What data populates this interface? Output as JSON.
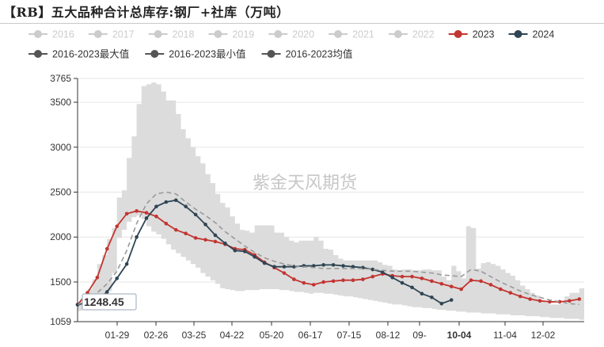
{
  "title": "【RB】五大品种合计总库存:钢厂+社库（万吨）",
  "watermark": "紫金天风期货",
  "tooltip_value": "1248.45",
  "legend": [
    {
      "label": "2016",
      "active": false
    },
    {
      "label": "2017",
      "active": false
    },
    {
      "label": "2018",
      "active": false
    },
    {
      "label": "2019",
      "active": false
    },
    {
      "label": "2020",
      "active": false
    },
    {
      "label": "2021",
      "active": false
    },
    {
      "label": "2022",
      "active": false
    },
    {
      "label": "2023",
      "active": true,
      "color": "#c23531"
    },
    {
      "label": "2024",
      "active": true,
      "color": "#2f4554"
    },
    {
      "label": "2016-2023最大值",
      "active": true,
      "color": "#555555"
    },
    {
      "label": "2016-2023最小值",
      "active": true,
      "color": "#555555"
    },
    {
      "label": "2016-2023均值",
      "active": true,
      "color": "#555555"
    }
  ],
  "colors": {
    "s2023": "#c23531",
    "s2024": "#2f4554",
    "mean": "#9a9a9a",
    "band": "#dcdcdc",
    "inactive_legend": "#cccccc",
    "grid": "#e6e6e6"
  },
  "chart_data": {
    "type": "line",
    "x_ticks": [
      "01-29",
      "02-26",
      "03-25",
      "04-22",
      "05-20",
      "06-17",
      "07-15",
      "08-12",
      "09-",
      "10-04",
      "11-04",
      "12-02"
    ],
    "highlighted_x_tick": "10-04",
    "y_ticks": [
      1059,
      1500,
      2000,
      2500,
      3000,
      3500,
      3765
    ],
    "ylim": [
      1059,
      3765
    ],
    "grid": true,
    "legend_position": "top",
    "band_x": [
      1.0,
      1.5,
      2.0,
      2.5,
      3.0,
      3.5,
      4.0,
      4.5,
      5.0,
      5.5,
      6.0,
      6.5,
      7.0,
      7.5,
      8.0,
      8.5,
      9.0,
      9.5,
      10.0,
      10.5,
      11.0,
      11.5,
      12.0,
      12.5,
      13.0,
      13.5,
      14.0,
      14.5,
      15.0,
      15.5,
      16.0,
      16.5,
      17.0,
      17.5,
      18.0,
      18.5,
      19.0,
      19.5,
      20.0,
      20.5,
      21.0,
      21.5,
      22.0,
      22.5,
      23.0,
      23.5,
      24.0,
      24.5,
      25.0,
      25.5,
      26.0,
      26.5,
      27.0,
      27.5,
      28.0,
      28.5,
      29.0,
      29.5,
      30.0,
      30.5,
      31.0,
      31.5,
      32.0,
      32.5,
      33.0,
      33.5,
      34.0,
      34.5,
      35.0,
      35.5,
      36.0,
      36.5,
      37.0,
      37.5,
      38.0,
      38.5,
      39.0,
      39.5,
      40.0,
      40.5,
      41.0,
      41.5,
      42.0,
      42.5,
      43.0,
      43.5,
      44.0,
      44.5,
      45.0,
      45.5,
      46.0,
      46.5,
      47.0,
      47.5,
      48.0,
      48.5,
      49.0,
      49.5,
      50.0,
      50.5,
      51.0,
      51.5,
      52.0,
      52.5
    ],
    "band_max": [
      1245,
      1310,
      1420,
      1530,
      1700,
      1800,
      1980,
      2100,
      2440,
      2520,
      2880,
      3120,
      3480,
      3680,
      3700,
      3720,
      3700,
      3620,
      3520,
      3520,
      3370,
      3200,
      3100,
      3000,
      2900,
      2820,
      2700,
      2600,
      2480,
      2380,
      2330,
      2230,
      2150,
      2080,
      2070,
      2050,
      2130,
      2130,
      2130,
      2130,
      2050,
      2050,
      2000,
      1960,
      1940,
      1960,
      1960,
      1960,
      2000,
      1960,
      1870,
      1860,
      1800,
      1760,
      1740,
      1740,
      1740,
      1740,
      1740,
      1740,
      1740,
      1720,
      1690,
      1680,
      1640,
      1630,
      1640,
      1640,
      1630,
      1630,
      1640,
      1640,
      1630,
      1630,
      1560,
      1520,
      1680,
      1620,
      1540,
      2120,
      2100,
      1650,
      1710,
      1720,
      1700,
      1680,
      1640,
      1600,
      1570,
      1520,
      1460,
      1420,
      1380,
      1350,
      1300,
      1270,
      1250,
      1250,
      1260,
      1340,
      1380,
      1380,
      1430,
      1430
    ],
    "band_min": [
      1180,
      1190,
      1190,
      1200,
      1240,
      1300,
      1400,
      1600,
      1990,
      2080,
      2170,
      2220,
      2240,
      2200,
      2120,
      2060,
      2030,
      1980,
      1920,
      1860,
      1820,
      1780,
      1740,
      1700,
      1660,
      1600,
      1560,
      1520,
      1480,
      1430,
      1420,
      1410,
      1400,
      1400,
      1410,
      1410,
      1410,
      1420,
      1420,
      1420,
      1420,
      1410,
      1410,
      1400,
      1390,
      1390,
      1380,
      1370,
      1380,
      1380,
      1370,
      1370,
      1360,
      1350,
      1340,
      1340,
      1330,
      1320,
      1310,
      1300,
      1290,
      1280,
      1270,
      1260,
      1250,
      1250,
      1240,
      1230,
      1220,
      1220,
      1210,
      1210,
      1200,
      1190,
      1190,
      1180,
      1180,
      1170,
      1170,
      1160,
      1160,
      1160,
      1150,
      1150,
      1150,
      1140,
      1140,
      1140,
      1130,
      1130,
      1130,
      1120,
      1120,
      1120,
      1110,
      1110,
      1100,
      1100,
      1100,
      1090,
      1090,
      1090,
      1080,
      1080
    ],
    "series": [
      {
        "name": "2023",
        "x": [
          1,
          3,
          5,
          7,
          9,
          11,
          13,
          15,
          17,
          19,
          21,
          23,
          25,
          27,
          29,
          31,
          33,
          35,
          37,
          39,
          41,
          43,
          45,
          47,
          49,
          51,
          53,
          55,
          57,
          59,
          61,
          63,
          65,
          67,
          69,
          71,
          73,
          75,
          77,
          79,
          81,
          83,
          85,
          87,
          89,
          91,
          93,
          95,
          97,
          99,
          101,
          103
        ],
        "values": [
          1248,
          1380,
          1550,
          1870,
          2120,
          2260,
          2290,
          2270,
          2230,
          2150,
          2080,
          2040,
          1990,
          1970,
          1950,
          1920,
          1870,
          1860,
          1800,
          1720,
          1660,
          1600,
          1530,
          1490,
          1470,
          1500,
          1510,
          1520,
          1520,
          1530,
          1560,
          1590,
          1570,
          1560,
          1560,
          1540,
          1510,
          1480,
          1450,
          1420,
          1520,
          1510,
          1470,
          1420,
          1380,
          1340,
          1310,
          1290,
          1280,
          1280,
          1290,
          1310
        ]
      },
      {
        "name": "2024",
        "x": [
          1,
          3,
          5,
          7,
          9,
          11,
          13,
          15,
          17,
          19,
          21,
          23,
          25,
          27,
          29,
          31,
          33,
          35,
          37,
          39,
          41,
          43,
          45,
          47,
          49,
          51,
          53,
          55,
          57,
          59,
          61,
          63,
          65,
          67,
          69,
          71,
          73,
          75,
          77
        ],
        "values": [
          1248,
          1270,
          1300,
          1390,
          1540,
          1700,
          2000,
          2210,
          2340,
          2390,
          2410,
          2340,
          2250,
          2140,
          2020,
          1930,
          1850,
          1840,
          1780,
          1710,
          1670,
          1670,
          1670,
          1680,
          1680,
          1690,
          1690,
          1680,
          1670,
          1660,
          1640,
          1610,
          1550,
          1490,
          1440,
          1370,
          1330,
          1260,
          1300
        ]
      },
      {
        "name": "2016-2023均值",
        "x": [
          1,
          3,
          5,
          7,
          9,
          11,
          13,
          15,
          17,
          19,
          21,
          23,
          25,
          27,
          29,
          31,
          33,
          35,
          37,
          39,
          41,
          43,
          45,
          47,
          49,
          51,
          53,
          55,
          57,
          59,
          61,
          63,
          65,
          67,
          69,
          71,
          73,
          75,
          77,
          79,
          81,
          83,
          85,
          87,
          89,
          91,
          93,
          95,
          97,
          99,
          101,
          103
        ],
        "values": [
          1248,
          1300,
          1380,
          1480,
          1620,
          1850,
          2150,
          2370,
          2480,
          2500,
          2480,
          2390,
          2310,
          2240,
          2160,
          2060,
          1980,
          1900,
          1830,
          1770,
          1730,
          1700,
          1680,
          1670,
          1660,
          1650,
          1650,
          1650,
          1650,
          1650,
          1640,
          1630,
          1620,
          1620,
          1620,
          1610,
          1600,
          1580,
          1570,
          1560,
          1640,
          1620,
          1560,
          1500,
          1450,
          1400,
          1360,
          1330,
          1300,
          1280,
          1260,
          1250
        ]
      }
    ]
  }
}
